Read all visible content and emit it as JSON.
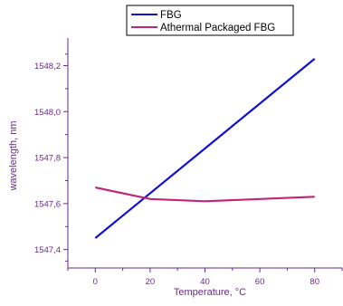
{
  "chart_data": {
    "type": "line",
    "xlabel": "Temperature, °C",
    "ylabel": "wavelength, nm",
    "x": [
      0,
      20,
      40,
      60,
      80
    ],
    "xlim": [
      -10,
      90
    ],
    "ylim": [
      1547.32,
      1548.32
    ],
    "xticks": [
      "0",
      "20",
      "40",
      "60",
      "80"
    ],
    "yticks": [
      "1547,4",
      "1547,6",
      "1547,8",
      "1548,0",
      "1548,2"
    ],
    "ytick_values": [
      1547.4,
      1547.6,
      1547.8,
      1548.0,
      1548.2
    ],
    "grid": false,
    "legend_position": "top",
    "series": [
      {
        "name": "FBG",
        "color": "#1010d0",
        "x": [
          0,
          80
        ],
        "values": [
          1547.45,
          1548.23
        ]
      },
      {
        "name": "Athermal Packaged FBG",
        "color": "#c0257a",
        "x": [
          0,
          20,
          40,
          60,
          80
        ],
        "values": [
          1547.67,
          1547.62,
          1547.61,
          1547.62,
          1547.63
        ]
      }
    ],
    "axis_color": "#6a2a88"
  }
}
